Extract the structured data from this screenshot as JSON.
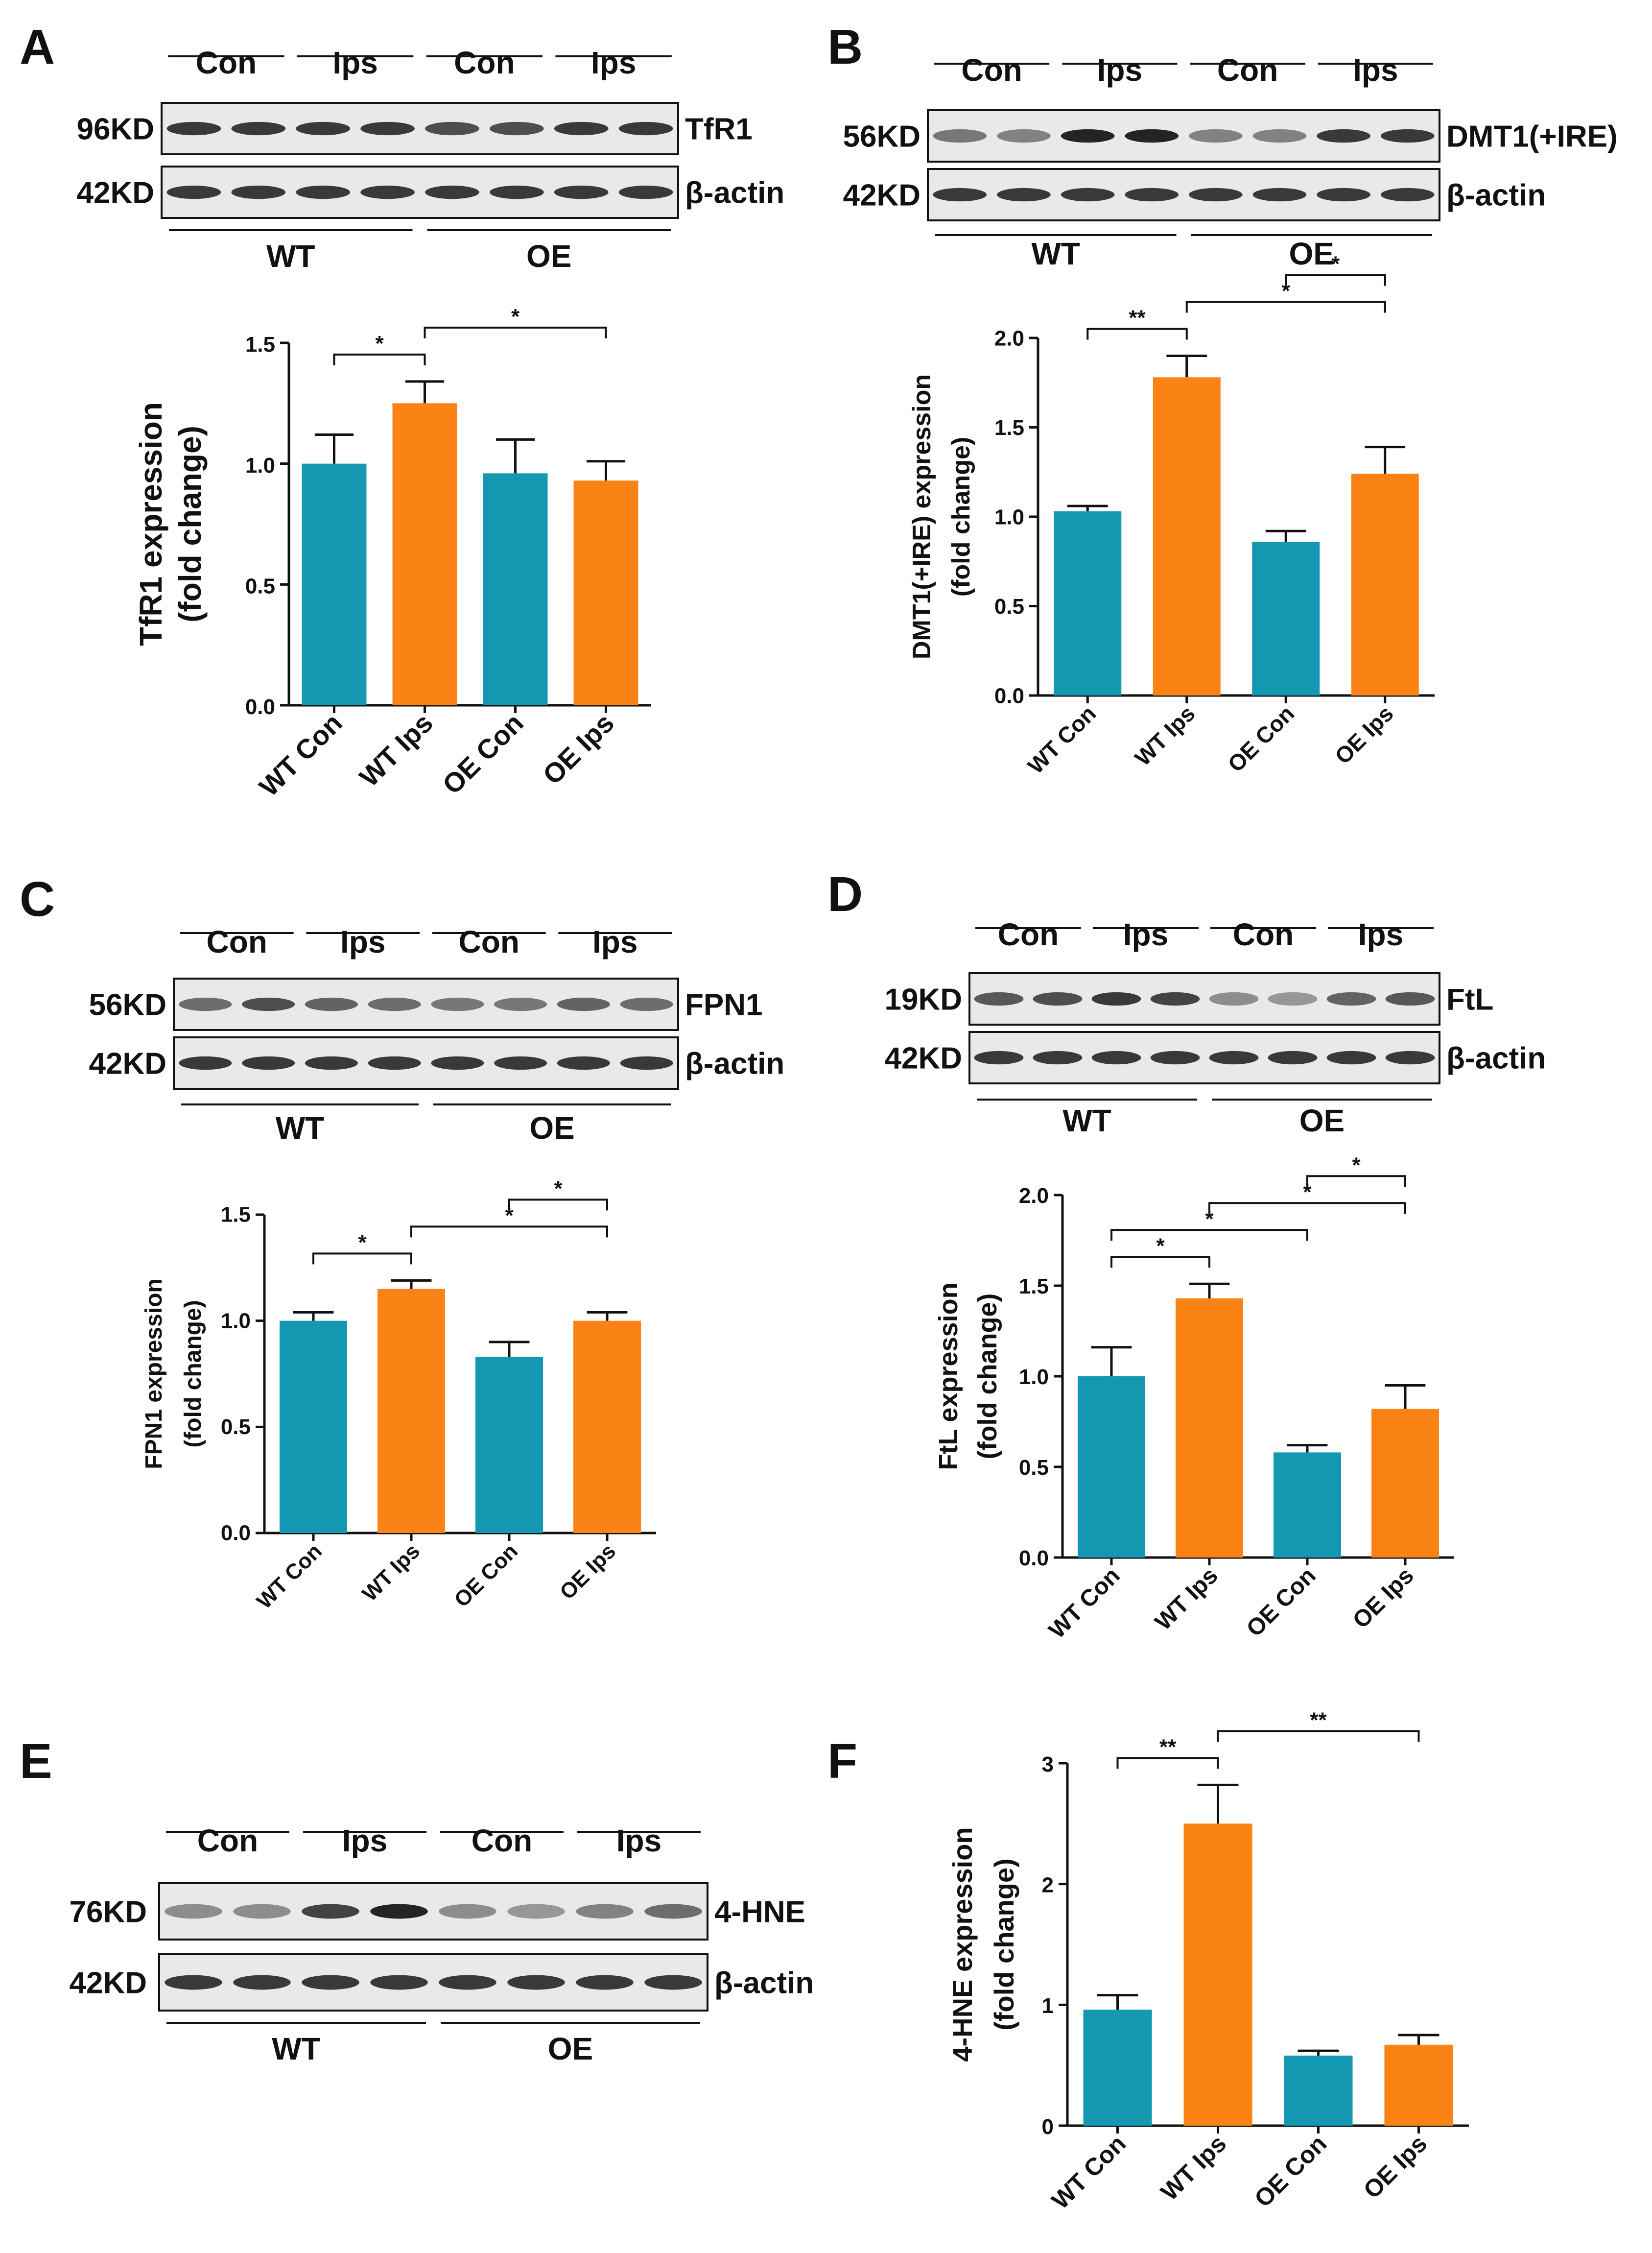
{
  "colors": {
    "control": "#1497b1",
    "treated": "#fb8316",
    "axis": "#111111"
  },
  "panels": [
    {
      "id": "A",
      "letter": "A",
      "blot": {
        "lanes": [
          "Con",
          "Ips",
          "Con",
          "Ips"
        ],
        "rows": [
          {
            "size": "96KD",
            "protein": "TfR1",
            "intensity": [
              0.85,
              0.85,
              0.85,
              0.85,
              0.75,
              0.75,
              0.85,
              0.85
            ]
          },
          {
            "size": "42KD",
            "protein": "β-actin",
            "intensity": [
              0.85,
              0.85,
              0.85,
              0.85,
              0.85,
              0.85,
              0.85,
              0.85
            ]
          }
        ],
        "groups": [
          "WT",
          "OE"
        ]
      },
      "chart_data": {
        "type": "bar",
        "categories": [
          "WT Con",
          "WT Ips",
          "OE Con",
          "OE Ips"
        ],
        "values": [
          1.0,
          1.25,
          0.96,
          0.93
        ],
        "errors": [
          0.12,
          0.09,
          0.14,
          0.08
        ],
        "ylabel": [
          "TfR1 expression",
          "(fold change)"
        ],
        "ylim": [
          0,
          1.5
        ],
        "yticks": [
          "0.0",
          "0.5",
          "1.0",
          "1.5"
        ],
        "significance": [
          {
            "from": 0,
            "to": 1,
            "label": "*"
          },
          {
            "from": 1,
            "to": 3,
            "label": "*"
          }
        ]
      }
    },
    {
      "id": "B",
      "letter": "B",
      "blot": {
        "lanes": [
          "Con",
          "Ips",
          "Con",
          "Ips"
        ],
        "rows": [
          {
            "size": "56KD",
            "protein": "DMT1(+IRE)",
            "intensity": [
              0.55,
              0.5,
              0.95,
              0.95,
              0.5,
              0.5,
              0.85,
              0.85
            ]
          },
          {
            "size": "42KD",
            "protein": "β-actin",
            "intensity": [
              0.85,
              0.85,
              0.85,
              0.85,
              0.85,
              0.85,
              0.85,
              0.85
            ]
          }
        ],
        "groups": [
          "WT",
          "OE"
        ]
      },
      "chart_data": {
        "type": "bar",
        "categories": [
          "WT Con",
          "WT Ips",
          "OE Con",
          "OE Ips"
        ],
        "values": [
          1.03,
          1.78,
          0.86,
          1.24
        ],
        "errors": [
          0.03,
          0.12,
          0.06,
          0.15
        ],
        "ylabel": [
          "DMT1(+IRE) expression",
          "(fold change)"
        ],
        "ylim": [
          0,
          2.0
        ],
        "yticks": [
          "0.0",
          "0.5",
          "1.0",
          "1.5",
          "2.0"
        ],
        "significance": [
          {
            "from": 0,
            "to": 1,
            "label": "**"
          },
          {
            "from": 1,
            "to": 3,
            "label": "*"
          },
          {
            "from": 2,
            "to": 3,
            "label": "*"
          }
        ]
      }
    },
    {
      "id": "C",
      "letter": "C",
      "blot": {
        "lanes": [
          "Con",
          "Ips",
          "Con",
          "Ips"
        ],
        "rows": [
          {
            "size": "56KD",
            "protein": "FPN1",
            "intensity": [
              0.6,
              0.75,
              0.65,
              0.6,
              0.55,
              0.55,
              0.65,
              0.6
            ]
          },
          {
            "size": "42KD",
            "protein": "β-actin",
            "intensity": [
              0.85,
              0.85,
              0.85,
              0.85,
              0.85,
              0.85,
              0.85,
              0.85
            ]
          }
        ],
        "groups": [
          "WT",
          "OE"
        ]
      },
      "chart_data": {
        "type": "bar",
        "categories": [
          "WT Con",
          "WT Ips",
          "OE Con",
          "OE Ips"
        ],
        "values": [
          1.0,
          1.15,
          0.83,
          1.0
        ],
        "errors": [
          0.04,
          0.04,
          0.07,
          0.04
        ],
        "ylabel": [
          "FPN1 expression",
          "(fold change)"
        ],
        "ylim": [
          0,
          1.5
        ],
        "yticks": [
          "0.0",
          "0.5",
          "1.0",
          "1.5"
        ],
        "significance": [
          {
            "from": 0,
            "to": 1,
            "label": "*"
          },
          {
            "from": 1,
            "to": 3,
            "label": "*"
          },
          {
            "from": 2,
            "to": 3,
            "label": "*"
          }
        ]
      }
    },
    {
      "id": "D",
      "letter": "D",
      "blot": {
        "lanes": [
          "Con",
          "Ips",
          "Con",
          "Ips"
        ],
        "rows": [
          {
            "size": "19KD",
            "protein": "FtL",
            "intensity": [
              0.7,
              0.75,
              0.85,
              0.8,
              0.45,
              0.4,
              0.65,
              0.7
            ]
          },
          {
            "size": "42KD",
            "protein": "β-actin",
            "intensity": [
              0.85,
              0.85,
              0.85,
              0.85,
              0.85,
              0.85,
              0.85,
              0.85
            ]
          }
        ],
        "groups": [
          "WT",
          "OE"
        ]
      },
      "chart_data": {
        "type": "bar",
        "categories": [
          "WT Con",
          "WT Ips",
          "OE Con",
          "OE Ips"
        ],
        "values": [
          1.0,
          1.43,
          0.58,
          0.82
        ],
        "errors": [
          0.16,
          0.08,
          0.04,
          0.13
        ],
        "ylabel": [
          "FtL expression",
          "(fold change)"
        ],
        "ylim": [
          0,
          2.0
        ],
        "yticks": [
          "0.0",
          "0.5",
          "1.0",
          "1.5",
          "2.0"
        ],
        "significance": [
          {
            "from": 0,
            "to": 1,
            "label": "*"
          },
          {
            "from": 0,
            "to": 2,
            "label": "*"
          },
          {
            "from": 1,
            "to": 3,
            "label": "*"
          },
          {
            "from": 2,
            "to": 3,
            "label": "*"
          }
        ]
      }
    },
    {
      "id": "E",
      "letter": "E",
      "blot": {
        "lanes": [
          "Con",
          "Ips",
          "Con",
          "Ips"
        ],
        "rows": [
          {
            "size": "76KD",
            "protein": "4-HNE",
            "intensity": [
              0.45,
              0.45,
              0.8,
              0.95,
              0.45,
              0.4,
              0.5,
              0.6
            ]
          },
          {
            "size": "42KD",
            "protein": "β-actin",
            "intensity": [
              0.85,
              0.85,
              0.85,
              0.85,
              0.85,
              0.85,
              0.85,
              0.85
            ]
          }
        ],
        "groups": [
          "WT",
          "OE"
        ]
      }
    },
    {
      "id": "F",
      "letter": "F",
      "chart_data": {
        "type": "bar",
        "categories": [
          "WT Con",
          "WT Ips",
          "OE Con",
          "OE Ips"
        ],
        "values": [
          0.96,
          2.5,
          0.58,
          0.67
        ],
        "errors": [
          0.12,
          0.32,
          0.04,
          0.08
        ],
        "ylabel": [
          "4-HNE expression",
          "(fold change)"
        ],
        "ylim": [
          0,
          3
        ],
        "yticks": [
          "0",
          "1",
          "2",
          "3"
        ],
        "significance": [
          {
            "from": 0,
            "to": 1,
            "label": "**"
          },
          {
            "from": 1,
            "to": 3,
            "label": "**"
          }
        ]
      }
    }
  ]
}
